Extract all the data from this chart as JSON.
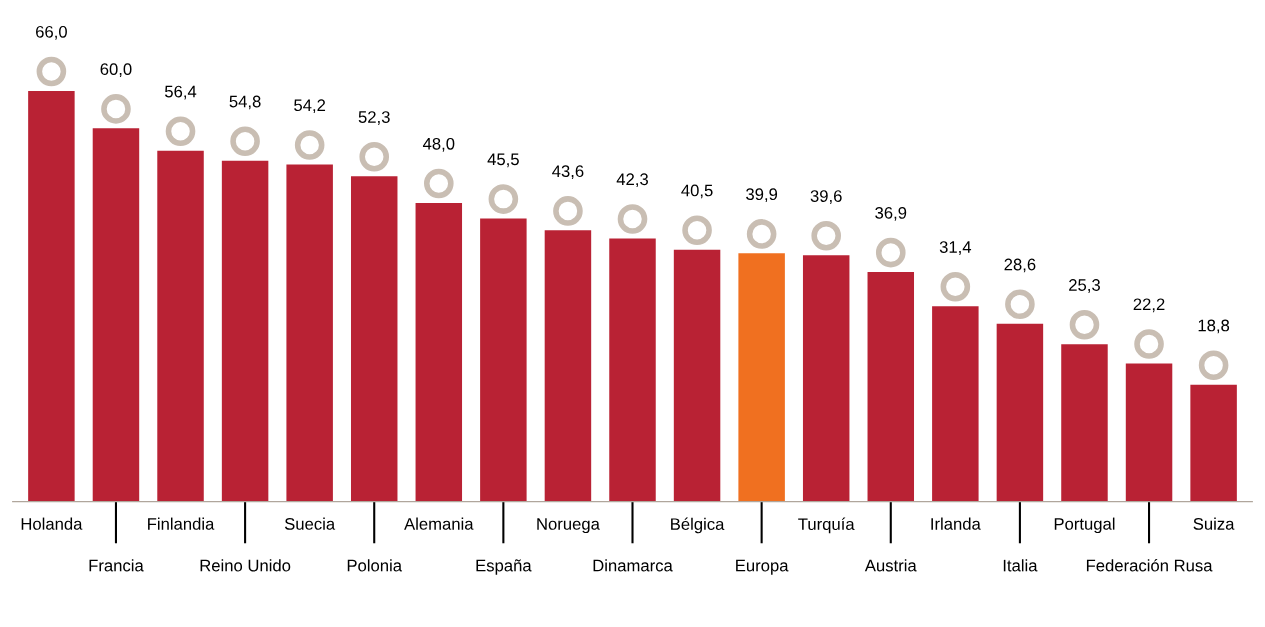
{
  "chart_data": {
    "type": "bar",
    "categories": [
      "Holanda",
      "Francia",
      "Finlandia",
      "Reino Unido",
      "Suecia",
      "Polonia",
      "Alemania",
      "España",
      "Noruega",
      "Dinamarca",
      "Bélgica",
      "Europa",
      "Turquía",
      "Austria",
      "Irlanda",
      "Italia",
      "Portugal",
      "Federación Rusa",
      "Suiza"
    ],
    "values": [
      66.0,
      60.0,
      56.4,
      54.8,
      54.2,
      52.3,
      48.0,
      45.5,
      43.6,
      42.3,
      40.5,
      39.9,
      39.6,
      36.9,
      31.4,
      28.6,
      25.3,
      22.2,
      18.8
    ],
    "value_labels": [
      "66,0",
      "60,0",
      "56,4",
      "54,8",
      "54,2",
      "52,3",
      "48,0",
      "45,5",
      "43,6",
      "42,3",
      "40,5",
      "39,9",
      "39,6",
      "36,9",
      "31,4",
      "28,6",
      "25,3",
      "22,2",
      "18,8"
    ],
    "colors": [
      "#b92234",
      "#b92234",
      "#b92234",
      "#b92234",
      "#b92234",
      "#b92234",
      "#b92234",
      "#b92234",
      "#b92234",
      "#b92234",
      "#b92234",
      "#f07020",
      "#b92234",
      "#b92234",
      "#b92234",
      "#b92234",
      "#b92234",
      "#b92234",
      "#b92234"
    ],
    "grid": false,
    "legend": false
  }
}
